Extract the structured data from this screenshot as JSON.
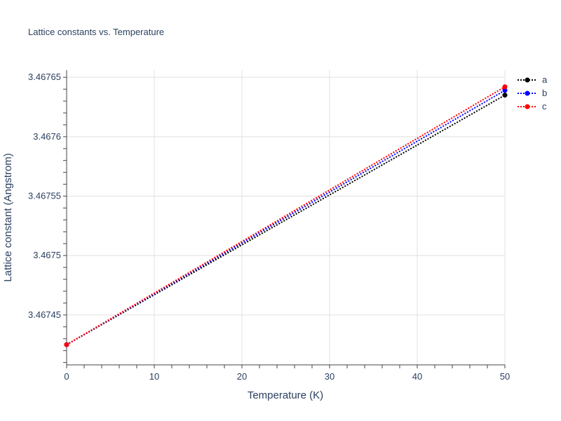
{
  "chart_data": {
    "type": "line",
    "title": "Lattice constants vs. Temperature",
    "xlabel": "Temperature (K)",
    "ylabel": "Lattice constant (Angstrom)",
    "xlim": [
      0,
      50
    ],
    "ylim": [
      3.467408,
      3.467656
    ],
    "x_ticks": [
      0,
      10,
      20,
      30,
      40,
      50
    ],
    "x_tick_labels": [
      "0",
      "10",
      "20",
      "30",
      "40",
      "50"
    ],
    "y_ticks": [
      3.46745,
      3.4675,
      3.46755,
      3.4676,
      3.46765
    ],
    "y_tick_labels": [
      "3.46745",
      "3.4675",
      "3.46755",
      "3.4676",
      "3.46765"
    ],
    "grid": true,
    "legend_position": "top-right",
    "line_style": "dotted",
    "series": [
      {
        "name": "a",
        "color": "#000000",
        "x": [
          0,
          50
        ],
        "y": [
          3.467425,
          3.467635
        ]
      },
      {
        "name": "b",
        "color": "#0000ff",
        "x": [
          0,
          50
        ],
        "y": [
          3.467425,
          3.467639
        ]
      },
      {
        "name": "c",
        "color": "#ff0000",
        "x": [
          0,
          50
        ],
        "y": [
          3.467425,
          3.467642
        ]
      }
    ]
  }
}
